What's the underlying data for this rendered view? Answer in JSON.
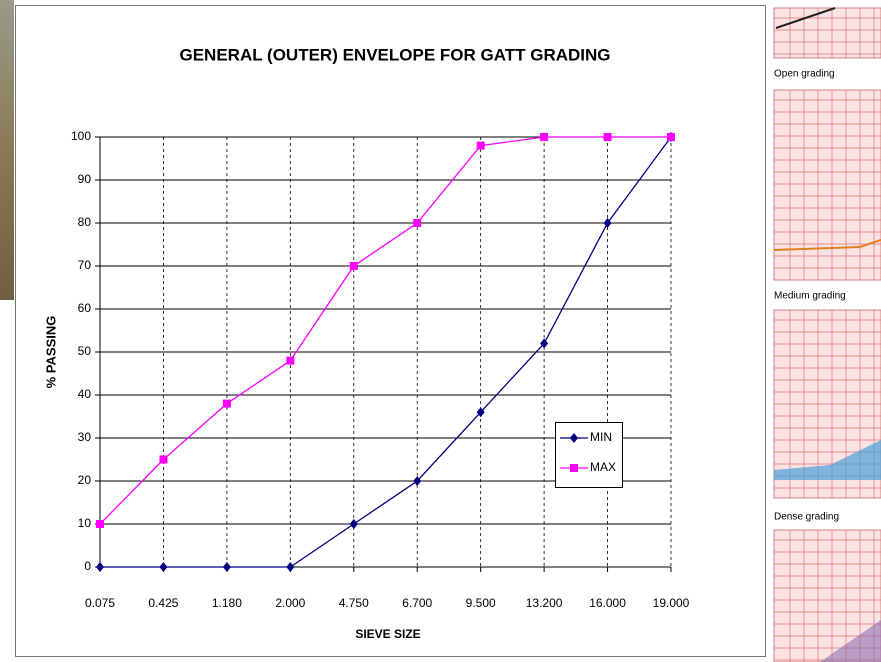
{
  "chart_data": {
    "type": "line",
    "title": "GENERAL (OUTER) ENVELOPE FOR GATT GRADING",
    "x_label": "SIEVE SIZE",
    "y_label": "% PASSING",
    "categories": [
      "0.075",
      "0.425",
      "1.180",
      "2.000",
      "4.750",
      "6.700",
      "9.500",
      "13.200",
      "16.000",
      "19.000"
    ],
    "series": [
      {
        "name": "MIN",
        "color": "#000080",
        "marker": "diamond",
        "values": [
          0,
          0,
          0,
          0,
          10,
          20,
          36,
          52,
          80,
          100
        ]
      },
      {
        "name": "MAX",
        "color": "#ff00ff",
        "marker": "square",
        "values": [
          10,
          25,
          38,
          48,
          70,
          80,
          98,
          100,
          100,
          100
        ]
      }
    ],
    "ylim": [
      0,
      100
    ],
    "yticks": [
      0,
      10,
      20,
      30,
      40,
      50,
      60,
      70,
      80,
      90,
      100
    ],
    "grid": true
  },
  "side_panel": {
    "labels": [
      "Open grading",
      "Medium grading",
      "Dense grading"
    ]
  }
}
